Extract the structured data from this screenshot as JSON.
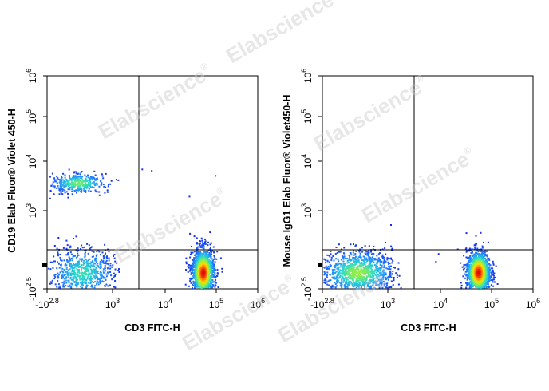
{
  "watermark": {
    "text": "Elabscience",
    "reg": "®"
  },
  "chart_data": [
    {
      "type": "scatter",
      "subtype": "flow-cytometry-density-dot-plot",
      "xlabel": "CD3 FITC-H",
      "ylabel": "CD19 Elab Fluor® Violet 450-H",
      "scale": "biexponential (log with negative region)",
      "xticks": [
        {
          "base": "-10",
          "exp": "2.8",
          "value": -631
        },
        {
          "base": "10",
          "exp": "3",
          "value": 1000
        },
        {
          "base": "10",
          "exp": "4",
          "value": 10000
        },
        {
          "base": "10",
          "exp": "5",
          "value": 100000
        },
        {
          "base": "10",
          "exp": "6",
          "value": 1000000
        }
      ],
      "yticks": [
        {
          "base": "-10",
          "exp": "2.5",
          "value": -316
        },
        {
          "base": "10",
          "exp": "3",
          "value": 1000
        },
        {
          "base": "10",
          "exp": "4",
          "value": 10000
        },
        {
          "base": "10",
          "exp": "5",
          "value": 100000
        },
        {
          "base": "10",
          "exp": "6",
          "value": 1000000
        }
      ],
      "gates": {
        "x_log": 3.5,
        "y_log": 2.65
      },
      "populations": [
        {
          "x_log": 2.68,
          "y_log": 3.57,
          "sx": 0.13,
          "sy": 0.1,
          "n": 380,
          "peak": 0.55
        },
        {
          "x_log": 2.72,
          "y_log": 2.45,
          "sx": 0.15,
          "sy": 0.11,
          "n": 700,
          "peak": 0.45
        },
        {
          "x_log": 4.73,
          "y_log": 2.45,
          "sx": 0.11,
          "sy": 0.11,
          "n": 1400,
          "peak": 1.0
        }
      ],
      "stray_points": [
        {
          "x_log": 3.55,
          "y_log": 3.85
        },
        {
          "x_log": 3.73,
          "y_log": 3.82
        },
        {
          "x_log": 4.46,
          "y_log": 3.3
        },
        {
          "x_log": 4.97,
          "y_log": 3.72
        }
      ]
    },
    {
      "type": "scatter",
      "subtype": "flow-cytometry-density-dot-plot",
      "xlabel": "CD3 FITC-H",
      "ylabel": "Mouse IgG1 Elab Fluor® Violet450-H",
      "scale": "biexponential (log with negative region)",
      "xticks": [
        {
          "base": "-10",
          "exp": "2.8",
          "value": -631
        },
        {
          "base": "10",
          "exp": "3",
          "value": 1000
        },
        {
          "base": "10",
          "exp": "4",
          "value": 10000
        },
        {
          "base": "10",
          "exp": "5",
          "value": 100000
        },
        {
          "base": "10",
          "exp": "6",
          "value": 1000000
        }
      ],
      "yticks": [
        {
          "base": "-10",
          "exp": "2.5",
          "value": -316
        },
        {
          "base": "10",
          "exp": "3",
          "value": 1000
        },
        {
          "base": "10",
          "exp": "4",
          "value": 10000
        },
        {
          "base": "10",
          "exp": "5",
          "value": 100000
        },
        {
          "base": "10",
          "exp": "6",
          "value": 1000000
        }
      ],
      "gates": {
        "x_log": 3.5,
        "y_log": 2.65
      },
      "populations": [
        {
          "x_log": 2.72,
          "y_log": 2.45,
          "sx": 0.17,
          "sy": 0.1,
          "n": 1100,
          "peak": 0.6
        },
        {
          "x_log": 4.73,
          "y_log": 2.45,
          "sx": 0.12,
          "sy": 0.1,
          "n": 1400,
          "peak": 1.0
        }
      ],
      "stray_points": [
        {
          "x_log": 3.9,
          "y_log": 2.55
        },
        {
          "x_log": 3.95,
          "y_log": 2.62
        }
      ]
    }
  ]
}
